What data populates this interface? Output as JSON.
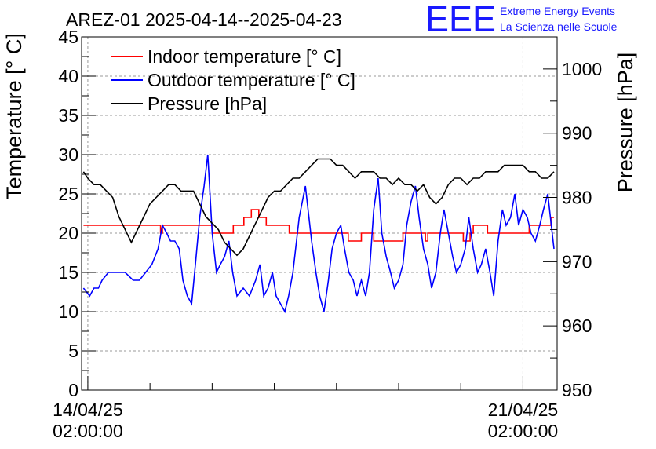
{
  "title": "AREZ-01 2025-04-14--2025-04-23",
  "branding": {
    "logo_text": "EEE",
    "line1": "Extreme Energy Events",
    "line2": "La Scienza nelle Scuole",
    "color": "#1a1aff"
  },
  "legend": [
    {
      "label": "Indoor temperature [° C]",
      "color": "#ff0000"
    },
    {
      "label": "Outdoor temperature [° C]",
      "color": "#0000ff"
    },
    {
      "label": "Pressure [hPa]",
      "color": "#000000"
    }
  ],
  "chart_data": {
    "type": "line",
    "title": "AREZ-01 2025-04-14--2025-04-23",
    "ylabel": "Temperature [° C]",
    "y2label": "Pressure [hPa]",
    "ylim": [
      0,
      45
    ],
    "y2lim": [
      950,
      1005
    ],
    "yticks": [
      0,
      5,
      10,
      15,
      20,
      25,
      30,
      35,
      40,
      45
    ],
    "y2ticks": [
      950,
      960,
      970,
      980,
      990,
      1000
    ],
    "xlim": [
      -0.1,
      7.55
    ],
    "xticks": [
      {
        "pos": 0,
        "line1": "14/04/25",
        "line2": "02:00:00"
      },
      {
        "pos": 7,
        "line1": "21/04/25",
        "line2": "02:00:00"
      }
    ],
    "grid": true,
    "legend_position": "top-left",
    "series": [
      {
        "name": "Indoor temperature [° C]",
        "axis": "left",
        "color": "#ff0000",
        "step": true,
        "x": [
          -0.07,
          1.1,
          1.17,
          1.2,
          1.25,
          1.4,
          1.6,
          1.97,
          2.0,
          2.27,
          2.34,
          2.4,
          2.51,
          2.63,
          2.75,
          2.78,
          2.87,
          3.0,
          3.04,
          3.14,
          3.2,
          3.24,
          3.4,
          3.6,
          3.8,
          3.84,
          4.07,
          4.19,
          4.37,
          4.4,
          4.57,
          4.6,
          4.84,
          4.9,
          5.07,
          5.13,
          5.2,
          5.43,
          5.47,
          5.63,
          5.66,
          5.9,
          5.93,
          6.04,
          6.15,
          6.2,
          6.31,
          6.43,
          6.5,
          6.8,
          7.1,
          7.2,
          7.4,
          7.45,
          7.5
        ],
        "values": [
          21,
          21,
          20,
          21,
          21,
          21,
          21,
          21,
          20,
          20,
          21,
          21,
          22,
          23,
          22,
          22,
          21,
          21,
          21,
          21,
          21,
          20,
          20,
          20,
          20,
          20,
          20,
          19,
          19,
          20,
          20,
          19,
          19,
          19,
          20,
          20,
          20,
          19,
          20,
          20,
          20,
          20,
          20,
          19,
          20,
          21,
          21,
          20,
          20,
          20,
          21,
          21,
          21,
          22,
          22
        ]
      },
      {
        "name": "Outdoor temperature [° C]",
        "axis": "left",
        "color": "#0000ff",
        "step": false,
        "x": [
          -0.07,
          0.03,
          0.1,
          0.17,
          0.23,
          0.33,
          0.47,
          0.6,
          0.73,
          0.83,
          0.93,
          1.03,
          1.13,
          1.2,
          1.27,
          1.33,
          1.4,
          1.47,
          1.53,
          1.6,
          1.67,
          1.73,
          1.8,
          1.87,
          1.93,
          2.0,
          2.07,
          2.13,
          2.2,
          2.27,
          2.33,
          2.4,
          2.5,
          2.6,
          2.7,
          2.77,
          2.83,
          2.9,
          2.97,
          3.03,
          3.1,
          3.17,
          3.23,
          3.3,
          3.4,
          3.5,
          3.6,
          3.67,
          3.73,
          3.8,
          3.87,
          3.93,
          4.0,
          4.07,
          4.13,
          4.2,
          4.27,
          4.33,
          4.4,
          4.47,
          4.53,
          4.6,
          4.67,
          4.73,
          4.8,
          4.87,
          4.93,
          5.0,
          5.07,
          5.13,
          5.2,
          5.27,
          5.33,
          5.4,
          5.47,
          5.53,
          5.6,
          5.67,
          5.73,
          5.8,
          5.87,
          5.93,
          6.0,
          6.07,
          6.13,
          6.2,
          6.27,
          6.33,
          6.4,
          6.47,
          6.53,
          6.6,
          6.67,
          6.73,
          6.8,
          6.87,
          6.93,
          7.0,
          7.07,
          7.13,
          7.2,
          7.27,
          7.33,
          7.4,
          7.47,
          7.5
        ],
        "values": [
          13,
          12,
          13,
          13,
          14,
          15,
          15,
          15,
          14,
          14,
          15,
          16,
          18,
          21,
          20,
          19,
          19,
          18,
          14,
          12,
          11,
          16,
          22,
          26,
          30,
          20,
          15,
          16,
          17,
          19,
          15,
          12,
          13,
          12,
          14,
          16,
          12,
          13,
          15,
          12,
          11,
          10,
          12,
          15,
          22,
          26,
          19,
          15,
          12,
          10,
          14,
          18,
          20,
          21,
          18,
          15,
          14,
          12,
          14,
          12,
          15,
          23,
          27,
          20,
          17,
          15,
          13,
          14,
          16,
          21,
          24,
          26,
          22,
          18,
          16,
          13,
          15,
          20,
          23,
          20,
          17,
          15,
          16,
          18,
          22,
          18,
          15,
          16,
          18,
          15,
          12,
          19,
          23,
          21,
          22,
          25,
          21,
          23,
          22,
          20,
          19,
          21,
          23,
          25,
          20,
          18
        ]
      },
      {
        "name": "Pressure [hPa]",
        "axis": "right",
        "color": "#000000",
        "step": false,
        "x": [
          -0.07,
          0.0,
          0.1,
          0.2,
          0.3,
          0.4,
          0.5,
          0.6,
          0.7,
          0.8,
          0.9,
          1.0,
          1.1,
          1.2,
          1.3,
          1.4,
          1.5,
          1.6,
          1.7,
          1.8,
          1.9,
          2.0,
          2.1,
          2.2,
          2.3,
          2.4,
          2.5,
          2.6,
          2.7,
          2.8,
          2.9,
          3.0,
          3.1,
          3.2,
          3.3,
          3.4,
          3.5,
          3.6,
          3.7,
          3.8,
          3.9,
          4.0,
          4.1,
          4.2,
          4.3,
          4.4,
          4.5,
          4.6,
          4.7,
          4.8,
          4.9,
          5.0,
          5.1,
          5.2,
          5.3,
          5.4,
          5.5,
          5.6,
          5.7,
          5.8,
          5.9,
          6.0,
          6.1,
          6.2,
          6.3,
          6.4,
          6.5,
          6.6,
          6.7,
          6.8,
          6.9,
          7.0,
          7.1,
          7.2,
          7.3,
          7.4,
          7.5
        ],
        "values": [
          984,
          983,
          982,
          982,
          981,
          980,
          977,
          975,
          973,
          975,
          977,
          979,
          980,
          981,
          982,
          982,
          981,
          981,
          981,
          979,
          977,
          976,
          975,
          973,
          972,
          971,
          972,
          974,
          976,
          978,
          980,
          981,
          981,
          982,
          983,
          983,
          984,
          985,
          986,
          986,
          986,
          985,
          985,
          984,
          983,
          984,
          984,
          984,
          983,
          983,
          982,
          983,
          982,
          982,
          981,
          982,
          980,
          979,
          980,
          982,
          983,
          983,
          982,
          983,
          983,
          984,
          984,
          984,
          985,
          985,
          985,
          985,
          984,
          984,
          983,
          983,
          984
        ]
      }
    ]
  }
}
